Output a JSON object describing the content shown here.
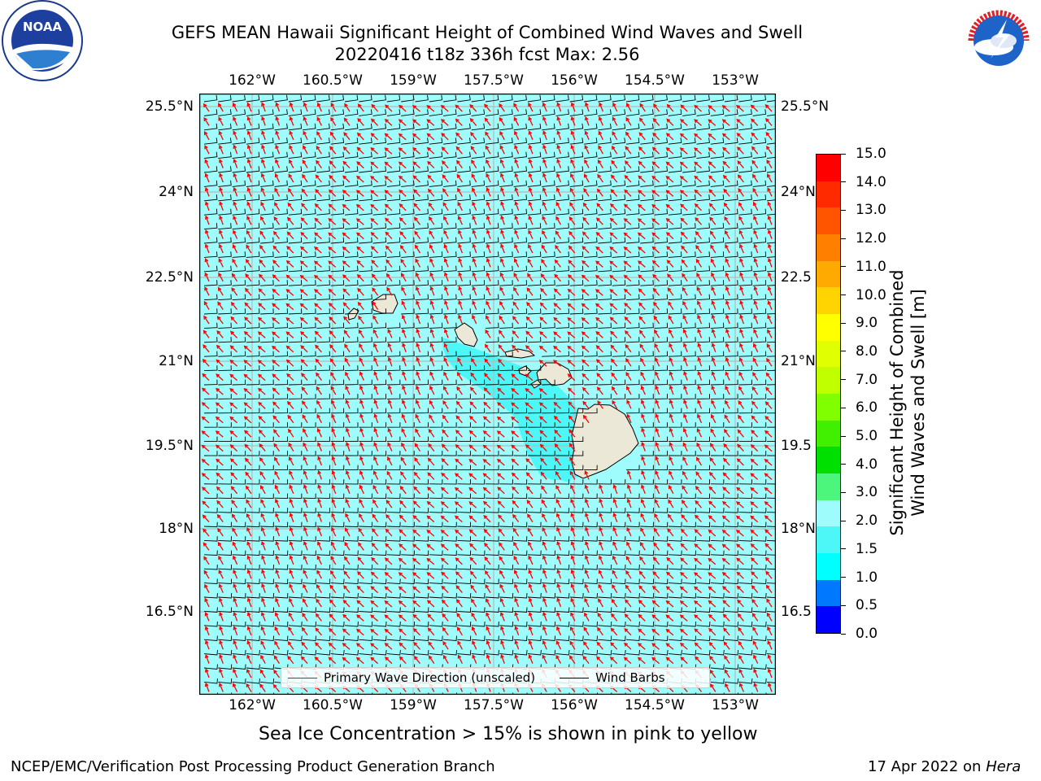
{
  "header": {
    "title_line1": "GEFS MEAN Hawaii Significant Height of Combined Wind Waves and Swell",
    "title_line2": "20220416 t18z 336h fcst   Max: 2.56"
  },
  "logos": {
    "left": "NOAA",
    "right": "NATIONAL WEATHER SERVICE"
  },
  "map": {
    "lon_ticks": [
      "162°W",
      "160.5°W",
      "159°W",
      "157.5°W",
      "156°W",
      "154.5°W",
      "153°W"
    ],
    "lat_ticks": [
      "25.5°N",
      "24°N",
      "22.5°N",
      "21°N",
      "19.5°N",
      "18°N",
      "16.5°N"
    ],
    "lat_ticks_right": [
      "25.5°N",
      "24°N",
      "22.5",
      "21°N",
      "19.5",
      "18°N",
      "16.5"
    ],
    "ocean_color": "#9ffcfc",
    "near_island_color": "#4ef7f7",
    "land_color": "#ece8d8",
    "wave_arrow_color": "#ff0000",
    "barb_color": "#000000"
  },
  "legend": {
    "wave_label": "Primary Wave Direction (unscaled)",
    "barb_label": "Wind Barbs"
  },
  "colorbar": {
    "title_line1": "Significant Height of Combined",
    "title_line2": "Wind Waves and Swell [m]",
    "labels": [
      "15.0",
      "14.0",
      "13.0",
      "12.0",
      "11.0",
      "10.0",
      "9.0",
      "8.0",
      "7.0",
      "6.0",
      "5.0",
      "4.0",
      "3.0",
      "2.0",
      "1.5",
      "1.0",
      "0.5",
      "0.0"
    ],
    "colors": [
      "#ff0000",
      "#ff2a00",
      "#ff5500",
      "#ff8000",
      "#ffaa00",
      "#ffd400",
      "#ffff00",
      "#e0ff00",
      "#c0ff00",
      "#80ff00",
      "#40f000",
      "#00e000",
      "#4cf57c",
      "#9ffcfc",
      "#4ef7f7",
      "#00ffff",
      "#0078ff",
      "#0000ff"
    ]
  },
  "footer": {
    "sea_ice_note": "Sea Ice Concentration > 15% is shown in pink to yellow",
    "branch": "NCEP/EMC/Verification Post Processing Product Generation Branch",
    "date": "17 Apr 2022 on",
    "machine": "Hera"
  }
}
